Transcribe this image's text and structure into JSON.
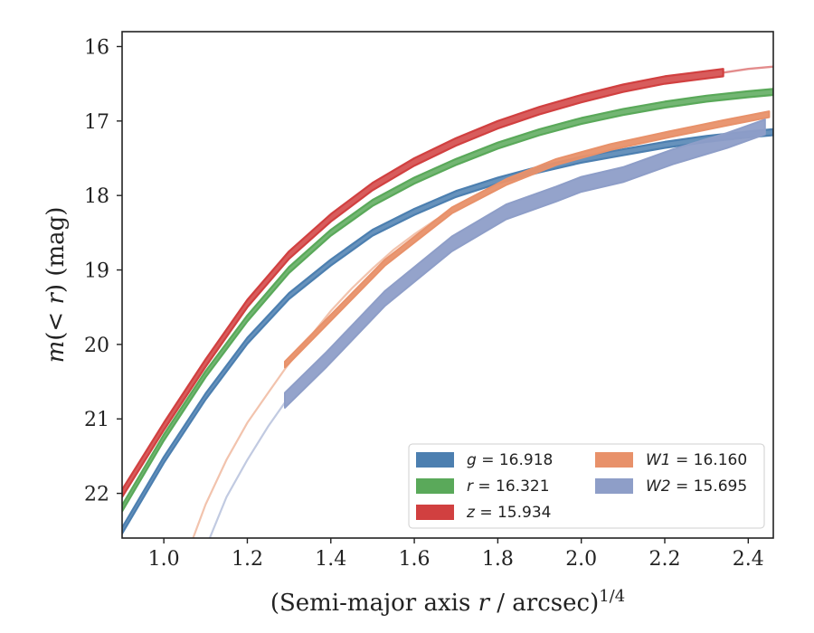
{
  "chart_data": {
    "type": "line",
    "xlabel": "(Semi-major axis r / arcsec)^{1/4}",
    "ylabel": "m(< r) (mag)",
    "xlim": [
      0.9,
      2.46
    ],
    "ylim": [
      22.6,
      15.8
    ],
    "y_inverted": true,
    "xticks": [
      1.0,
      1.2,
      1.4,
      1.6,
      1.8,
      2.0,
      2.2,
      2.4
    ],
    "xtick_labels": [
      "1.0",
      "1.2",
      "1.4",
      "1.6",
      "1.8",
      "2.0",
      "2.2",
      "2.4"
    ],
    "yticks": [
      16,
      17,
      18,
      19,
      20,
      21,
      22
    ],
    "ytick_labels": [
      "16",
      "17",
      "18",
      "19",
      "20",
      "21",
      "22"
    ],
    "grid": false,
    "legend_position": "lower-right",
    "legend_columns": 2,
    "series": [
      {
        "name": "g = 16.918",
        "legend_parts": [
          "g",
          " = 16.918"
        ],
        "color": "#4c7fb0",
        "band_halfwidth": 0.04,
        "x": [
          0.9,
          1.0,
          1.1,
          1.2,
          1.3,
          1.4,
          1.5,
          1.6,
          1.7,
          1.8,
          1.9,
          2.0,
          2.1,
          2.2,
          2.3,
          2.4,
          2.46
        ],
        "y": [
          22.5,
          21.55,
          20.7,
          19.95,
          19.35,
          18.9,
          18.5,
          18.22,
          17.98,
          17.8,
          17.65,
          17.52,
          17.42,
          17.32,
          17.24,
          17.18,
          17.15
        ]
      },
      {
        "name": "r = 16.321",
        "legend_parts": [
          "r",
          " = 16.321"
        ],
        "color": "#5aa95a",
        "band_halfwidth": 0.04,
        "x": [
          0.9,
          1.0,
          1.1,
          1.2,
          1.3,
          1.4,
          1.5,
          1.6,
          1.7,
          1.8,
          1.9,
          2.0,
          2.1,
          2.2,
          2.3,
          2.4,
          2.46
        ],
        "y": [
          22.2,
          21.25,
          20.4,
          19.65,
          19.0,
          18.5,
          18.1,
          17.8,
          17.55,
          17.33,
          17.15,
          17.0,
          16.88,
          16.78,
          16.7,
          16.64,
          16.61
        ]
      },
      {
        "name": "z = 15.934",
        "legend_parts": [
          "z",
          " = 15.934"
        ],
        "color": "#d14040",
        "band_halfwidth": 0.05,
        "tail_from_x": 2.34,
        "x": [
          0.9,
          1.0,
          1.1,
          1.2,
          1.3,
          1.4,
          1.5,
          1.6,
          1.7,
          1.8,
          1.9,
          2.0,
          2.1,
          2.2,
          2.34,
          2.4,
          2.46
        ],
        "y": [
          22.0,
          21.1,
          20.25,
          19.45,
          18.8,
          18.3,
          17.88,
          17.55,
          17.28,
          17.05,
          16.86,
          16.7,
          16.56,
          16.45,
          16.35,
          16.3,
          16.27
        ]
      },
      {
        "name": "W1 = 16.160",
        "legend_parts": [
          "W1",
          " = 16.160"
        ],
        "color": "#e8916a",
        "band_halfwidth": 0.04,
        "measured_x": [
          1.29,
          1.53,
          1.69,
          1.82,
          1.94,
          2.07,
          2.21,
          2.34,
          2.45
        ],
        "measured_y": [
          20.27,
          18.9,
          18.2,
          17.82,
          17.55,
          17.35,
          17.18,
          17.03,
          16.91
        ],
        "extrapolated_x": [
          1.07,
          1.1,
          1.15,
          1.2,
          1.25,
          1.29,
          1.35,
          1.4,
          1.45,
          1.5,
          1.55,
          1.6,
          1.65,
          1.69
        ],
        "extrapolated_y": [
          22.6,
          22.15,
          21.55,
          21.05,
          20.65,
          20.33,
          19.9,
          19.55,
          19.25,
          18.98,
          18.73,
          18.52,
          18.33,
          18.2
        ]
      },
      {
        "name": "W2 = 15.695",
        "legend_parts": [
          "W2",
          " = 15.695"
        ],
        "color": "#8e9ec8",
        "band_halfwidth": 0.1,
        "measured_x": [
          1.29,
          1.39,
          1.53,
          1.69,
          1.82,
          1.94,
          2.0,
          2.1,
          2.22,
          2.35,
          2.44
        ],
        "measured_y": [
          20.75,
          20.2,
          19.38,
          18.65,
          18.22,
          17.98,
          17.85,
          17.72,
          17.48,
          17.26,
          17.08
        ],
        "extrapolated_x": [
          1.11,
          1.15,
          1.2,
          1.25,
          1.29
        ],
        "extrapolated_y": [
          22.6,
          22.05,
          21.55,
          21.1,
          20.78
        ]
      }
    ]
  },
  "axis_text": {
    "xlabel_main": "(Semi-major axis ",
    "xlabel_italic": "r",
    "xlabel_tail": " / arcsec)",
    "xlabel_exponent": "1/4",
    "ylabel_m": "m",
    "ylabel_mid": "(< ",
    "ylabel_r": "r",
    "ylabel_tail": ") (mag)"
  }
}
